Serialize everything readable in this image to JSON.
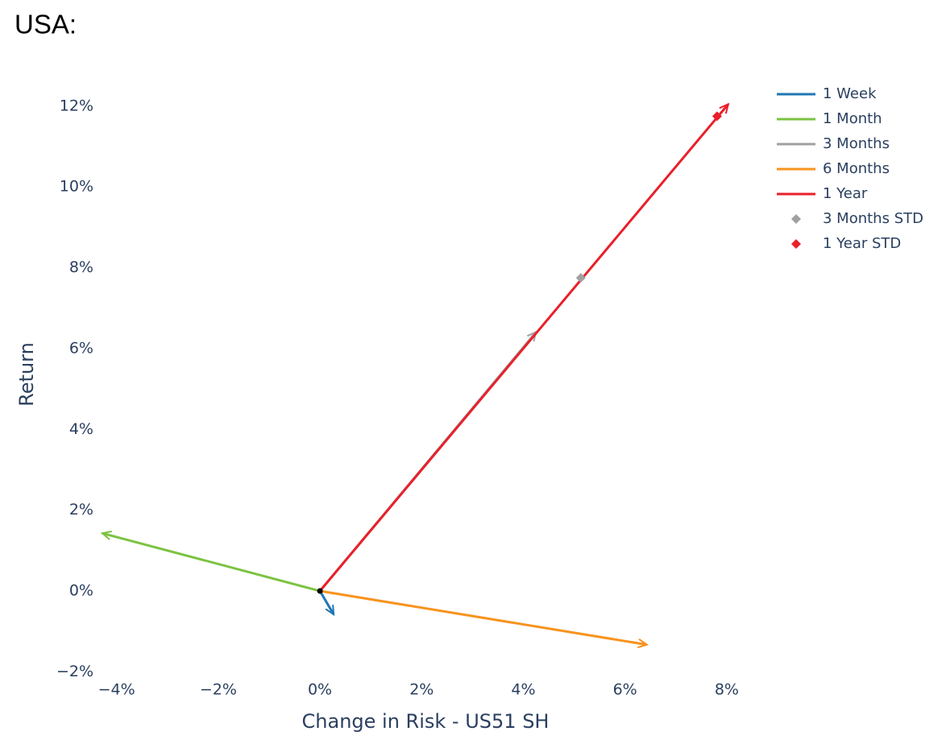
{
  "chart_data": {
    "type": "line",
    "title": "USA:",
    "x_label": "Change in Risk - US51 SH",
    "y_label": "Return",
    "xlim": [
      -4.4,
      8.55
    ],
    "ylim": [
      -2.15,
      12.45
    ],
    "xticks": [
      {
        "value": -4,
        "label": "−4%"
      },
      {
        "value": -2,
        "label": "−2%"
      },
      {
        "value": 0,
        "label": "0%"
      },
      {
        "value": 2,
        "label": "2%"
      },
      {
        "value": 4,
        "label": "4%"
      },
      {
        "value": 6,
        "label": "6%"
      },
      {
        "value": 8,
        "label": "8%"
      }
    ],
    "yticks": [
      {
        "value": -2,
        "label": "−2%"
      },
      {
        "value": 0,
        "label": "0%"
      },
      {
        "value": 2,
        "label": "2%"
      },
      {
        "value": 4,
        "label": "4%"
      },
      {
        "value": 6,
        "label": "6%"
      },
      {
        "value": 8,
        "label": "8%"
      },
      {
        "value": 10,
        "label": "10%"
      },
      {
        "value": 12,
        "label": "12%"
      }
    ],
    "grid": false,
    "legend": "upper right",
    "series": [
      {
        "name": "1 Week",
        "color": "#1f77b4",
        "mode": "lines",
        "x": [
          0,
          0.27
        ],
        "values": [
          0,
          -0.58
        ]
      },
      {
        "name": "1 Month",
        "color": "#7cc242",
        "mode": "lines",
        "x": [
          0,
          -4.28
        ],
        "values": [
          0,
          1.43
        ]
      },
      {
        "name": "3 Months",
        "color": "#a0a0a0",
        "mode": "lines",
        "x": [
          0,
          4.25
        ],
        "values": [
          0,
          6.41
        ]
      },
      {
        "name": "6 Months",
        "color": "#f7931e",
        "mode": "lines",
        "x": [
          0,
          6.43
        ],
        "values": [
          0,
          -1.33
        ]
      },
      {
        "name": "1 Year",
        "color": "#e8202a",
        "mode": "lines",
        "x": [
          0,
          8.03
        ],
        "values": [
          0,
          12.05
        ]
      },
      {
        "name": "3 Months STD",
        "color": "#a0a0a0",
        "mode": "markers",
        "x": [
          5.13
        ],
        "values": [
          7.75
        ]
      },
      {
        "name": "1 Year STD",
        "color": "#e8202a",
        "mode": "markers",
        "x": [
          7.81
        ],
        "values": [
          11.75
        ]
      }
    ]
  }
}
